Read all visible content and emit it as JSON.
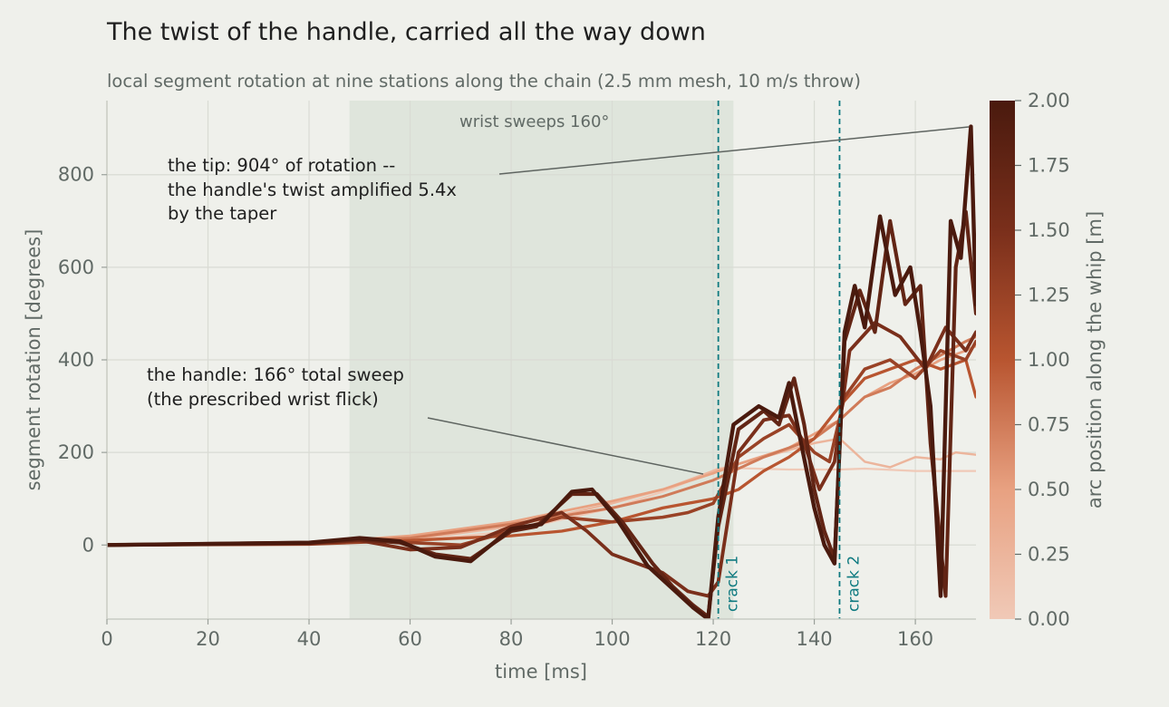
{
  "title": "The twist of the handle, carried all the way down",
  "subtitle": "local segment rotation at nine stations along the chain (2.5 mm mesh, 10 m/s throw)",
  "band_label": "wrist sweeps 160°",
  "annotations": {
    "tip": [
      "the tip: 904° of rotation --",
      "the handle's twist amplified 5.4x",
      "by the taper"
    ],
    "handle": [
      "the handle: 166° total sweep",
      "(the prescribed wrist flick)"
    ]
  },
  "colors": {
    "background": "#eff0eb",
    "band": "#dfe5dc",
    "crack_line": "#0f7a80",
    "colormap": [
      "#f0c9b7",
      "#e8a181",
      "#b85530",
      "#7a2f1b",
      "#4a1a0e"
    ]
  },
  "chart_data": {
    "type": "line",
    "title": "The twist of the handle, carried all the way down",
    "subtitle": "local segment rotation at nine stations along the chain (2.5 mm mesh, 10 m/s throw)",
    "xlabel": "time  [ms]",
    "ylabel": "segment rotation  [degrees]",
    "xlim": [
      0,
      172
    ],
    "ylim": [
      -160,
      960
    ],
    "xticks": [
      0,
      20,
      40,
      60,
      80,
      100,
      120,
      140,
      160
    ],
    "yticks": [
      0,
      200,
      400,
      600,
      800
    ],
    "grid": true,
    "shaded_region": {
      "x": [
        48,
        124
      ],
      "label": "wrist sweeps 160°"
    },
    "vlines": [
      {
        "x": 121,
        "label": "crack 1"
      },
      {
        "x": 145,
        "label": "crack 2"
      }
    ],
    "colorbar": {
      "label": "arc position along the whip  [m]",
      "min": 0,
      "max": 2.0,
      "ticks": [
        "0.00",
        "0.25",
        "0.50",
        "0.75",
        "1.00",
        "1.25",
        "1.50",
        "1.75",
        "2.00"
      ]
    },
    "series": [
      {
        "arc_m": 0.0,
        "points": [
          [
            0,
            0
          ],
          [
            40,
            2
          ],
          [
            60,
            8
          ],
          [
            80,
            30
          ],
          [
            100,
            80
          ],
          [
            110,
            115
          ],
          [
            118,
            150
          ],
          [
            121,
            166
          ],
          [
            125,
            166
          ],
          [
            135,
            163
          ],
          [
            145,
            163
          ],
          [
            150,
            165
          ],
          [
            160,
            160
          ],
          [
            172,
            160
          ]
        ]
      },
      {
        "arc_m": 0.25,
        "points": [
          [
            0,
            0
          ],
          [
            40,
            3
          ],
          [
            60,
            12
          ],
          [
            80,
            40
          ],
          [
            100,
            90
          ],
          [
            110,
            120
          ],
          [
            120,
            160
          ],
          [
            125,
            175
          ],
          [
            130,
            190
          ],
          [
            135,
            205
          ],
          [
            140,
            220
          ],
          [
            145,
            230
          ],
          [
            150,
            180
          ],
          [
            155,
            168
          ],
          [
            160,
            190
          ],
          [
            165,
            185
          ],
          [
            168,
            200
          ],
          [
            172,
            195
          ]
        ]
      },
      {
        "arc_m": 0.5,
        "points": [
          [
            0,
            0
          ],
          [
            40,
            4
          ],
          [
            60,
            20
          ],
          [
            80,
            50
          ],
          [
            100,
            95
          ],
          [
            110,
            120
          ],
          [
            120,
            155
          ],
          [
            125,
            175
          ],
          [
            135,
            210
          ],
          [
            145,
            270
          ],
          [
            150,
            320
          ],
          [
            155,
            350
          ],
          [
            160,
            370
          ],
          [
            165,
            400
          ],
          [
            170,
            420
          ],
          [
            172,
            430
          ]
        ]
      },
      {
        "arc_m": 0.75,
        "points": [
          [
            0,
            0
          ],
          [
            40,
            5
          ],
          [
            60,
            15
          ],
          [
            80,
            45
          ],
          [
            100,
            80
          ],
          [
            110,
            105
          ],
          [
            120,
            140
          ],
          [
            125,
            165
          ],
          [
            130,
            190
          ],
          [
            140,
            230
          ],
          [
            145,
            270
          ],
          [
            150,
            320
          ],
          [
            155,
            340
          ],
          [
            160,
            380
          ],
          [
            165,
            410
          ],
          [
            170,
            440
          ],
          [
            172,
            450
          ]
        ]
      },
      {
        "arc_m": 1.0,
        "points": [
          [
            0,
            0
          ],
          [
            40,
            3
          ],
          [
            60,
            10
          ],
          [
            80,
            20
          ],
          [
            90,
            30
          ],
          [
            100,
            50
          ],
          [
            110,
            80
          ],
          [
            120,
            100
          ],
          [
            125,
            120
          ],
          [
            130,
            160
          ],
          [
            135,
            190
          ],
          [
            140,
            230
          ],
          [
            145,
            300
          ],
          [
            150,
            360
          ],
          [
            155,
            380
          ],
          [
            160,
            400
          ],
          [
            165,
            380
          ],
          [
            170,
            400
          ],
          [
            172,
            320
          ]
        ]
      },
      {
        "arc_m": 1.25,
        "points": [
          [
            0,
            0
          ],
          [
            40,
            2
          ],
          [
            55,
            8
          ],
          [
            70,
            0
          ],
          [
            80,
            30
          ],
          [
            90,
            60
          ],
          [
            100,
            50
          ],
          [
            110,
            60
          ],
          [
            115,
            70
          ],
          [
            120,
            90
          ],
          [
            125,
            190
          ],
          [
            130,
            230
          ],
          [
            135,
            260
          ],
          [
            140,
            200
          ],
          [
            143,
            180
          ],
          [
            146,
            320
          ],
          [
            150,
            380
          ],
          [
            155,
            400
          ],
          [
            160,
            360
          ],
          [
            165,
            420
          ],
          [
            170,
            400
          ],
          [
            172,
            440
          ]
        ]
      },
      {
        "arc_m": 1.5,
        "points": [
          [
            0,
            0
          ],
          [
            40,
            3
          ],
          [
            50,
            10
          ],
          [
            60,
            -10
          ],
          [
            70,
            -5
          ],
          [
            80,
            40
          ],
          [
            90,
            70
          ],
          [
            95,
            30
          ],
          [
            100,
            -20
          ],
          [
            105,
            -40
          ],
          [
            110,
            -60
          ],
          [
            115,
            -100
          ],
          [
            119,
            -110
          ],
          [
            121,
            -80
          ],
          [
            125,
            200
          ],
          [
            130,
            270
          ],
          [
            135,
            280
          ],
          [
            138,
            220
          ],
          [
            141,
            120
          ],
          [
            144,
            180
          ],
          [
            147,
            420
          ],
          [
            152,
            480
          ],
          [
            157,
            450
          ],
          [
            162,
            380
          ],
          [
            166,
            470
          ],
          [
            170,
            420
          ],
          [
            172,
            460
          ]
        ]
      },
      {
        "arc_m": 1.75,
        "points": [
          [
            0,
            0
          ],
          [
            40,
            5
          ],
          [
            50,
            12
          ],
          [
            58,
            5
          ],
          [
            65,
            -20
          ],
          [
            72,
            -30
          ],
          [
            80,
            30
          ],
          [
            85,
            40
          ],
          [
            92,
            110
          ],
          [
            97,
            110
          ],
          [
            102,
            50
          ],
          [
            108,
            -40
          ],
          [
            112,
            -90
          ],
          [
            116,
            -130
          ],
          [
            119,
            -155
          ],
          [
            121,
            40
          ],
          [
            125,
            250
          ],
          [
            130,
            290
          ],
          [
            133,
            260
          ],
          [
            136,
            360
          ],
          [
            138,
            260
          ],
          [
            140,
            120
          ],
          [
            142,
            30
          ],
          [
            144,
            -30
          ],
          [
            146,
            440
          ],
          [
            149,
            550
          ],
          [
            152,
            460
          ],
          [
            155,
            700
          ],
          [
            158,
            520
          ],
          [
            161,
            560
          ],
          [
            163,
            220
          ],
          [
            166,
            -110
          ],
          [
            168,
            600
          ],
          [
            170,
            720
          ],
          [
            172,
            500
          ]
        ]
      },
      {
        "arc_m": 2.0,
        "points": [
          [
            0,
            0
          ],
          [
            40,
            5
          ],
          [
            50,
            15
          ],
          [
            58,
            8
          ],
          [
            65,
            -25
          ],
          [
            72,
            -35
          ],
          [
            80,
            35
          ],
          [
            86,
            45
          ],
          [
            92,
            115
          ],
          [
            96,
            120
          ],
          [
            101,
            55
          ],
          [
            107,
            -45
          ],
          [
            112,
            -95
          ],
          [
            116,
            -135
          ],
          [
            119,
            -160
          ],
          [
            121,
            60
          ],
          [
            124,
            260
          ],
          [
            129,
            300
          ],
          [
            133,
            275
          ],
          [
            135,
            350
          ],
          [
            137,
            240
          ],
          [
            140,
            80
          ],
          [
            142,
            0
          ],
          [
            144,
            -40
          ],
          [
            146,
            460
          ],
          [
            148,
            560
          ],
          [
            150,
            470
          ],
          [
            153,
            710
          ],
          [
            156,
            540
          ],
          [
            159,
            600
          ],
          [
            161,
            460
          ],
          [
            163,
            300
          ],
          [
            165,
            -110
          ],
          [
            167,
            700
          ],
          [
            169,
            620
          ],
          [
            171,
            904
          ],
          [
            172,
            520
          ]
        ]
      }
    ]
  }
}
